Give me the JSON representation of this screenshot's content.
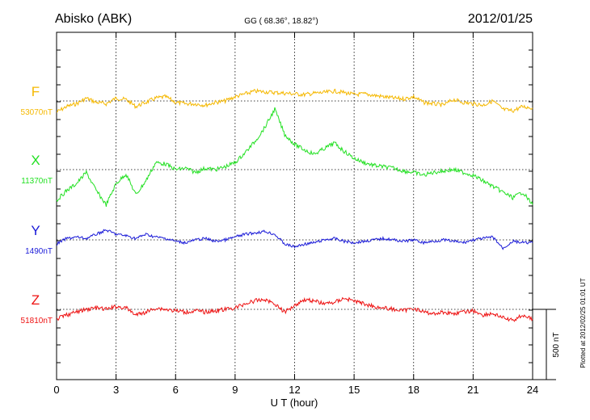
{
  "header": {
    "station": "Abisko (ABK)",
    "coords": "GG ( 68.36°,  18.82°)",
    "date": "2012/01/25"
  },
  "side_note": "Plotted at 2012/02/25 01:01 UT",
  "scale_label": "500 nT",
  "chart_data": {
    "type": "line",
    "xlabel": "U T (hour)",
    "xlim": [
      0,
      24
    ],
    "xticks": [
      0,
      3,
      6,
      9,
      12,
      15,
      18,
      21,
      24
    ],
    "grid": true,
    "scale_nT": 500,
    "series": [
      {
        "name": "F",
        "baseline_label": "53070nT",
        "color": "#f5b800",
        "t": [
          0,
          0.5,
          1,
          1.5,
          2,
          2.5,
          3,
          3.5,
          4,
          4.5,
          5,
          5.5,
          6,
          6.5,
          7,
          7.5,
          8,
          8.5,
          9,
          9.5,
          10,
          10.5,
          11,
          11.5,
          12,
          12.5,
          13,
          13.5,
          14,
          14.5,
          15,
          15.5,
          16,
          16.5,
          17,
          17.5,
          18,
          18.5,
          19,
          19.5,
          20,
          20.5,
          21,
          21.5,
          22,
          22.5,
          23,
          23.5,
          24
        ],
        "v": [
          -80,
          -40,
          -20,
          20,
          -10,
          -20,
          20,
          10,
          -40,
          -10,
          20,
          30,
          -10,
          -20,
          -20,
          -30,
          -10,
          0,
          30,
          50,
          70,
          65,
          60,
          55,
          50,
          45,
          55,
          60,
          70,
          60,
          45,
          50,
          40,
          30,
          20,
          15,
          30,
          -10,
          -20,
          -30,
          10,
          -10,
          -20,
          -30,
          0,
          -60,
          -70,
          -40,
          -50
        ]
      },
      {
        "name": "X",
        "baseline_label": "11370nT",
        "color": "#22e022",
        "t": [
          0,
          0.5,
          1,
          1.5,
          2,
          2.5,
          3,
          3.5,
          4,
          4.5,
          5,
          5.5,
          6,
          6.5,
          7,
          7.5,
          8,
          8.5,
          9,
          9.5,
          10,
          10.5,
          11,
          11.5,
          12,
          12.5,
          13,
          13.5,
          14,
          14.5,
          15,
          15.5,
          16,
          16.5,
          17,
          17.5,
          18,
          18.5,
          19,
          19.5,
          20,
          20.5,
          21,
          21.5,
          22,
          22.5,
          23,
          23.5,
          24
        ],
        "v": [
          -220,
          -150,
          -100,
          -20,
          -150,
          -250,
          -100,
          -30,
          -180,
          -80,
          50,
          40,
          0,
          10,
          -20,
          10,
          0,
          20,
          50,
          120,
          200,
          300,
          430,
          250,
          180,
          140,
          110,
          150,
          190,
          130,
          80,
          50,
          30,
          20,
          10,
          -10,
          -20,
          -40,
          -20,
          -10,
          0,
          -20,
          -40,
          -80,
          -120,
          -160,
          -200,
          -160,
          -250
        ]
      },
      {
        "name": "Y",
        "baseline_label": "1490nT",
        "color": "#1a1ad8",
        "t": [
          0,
          0.5,
          1,
          1.5,
          2,
          2.5,
          3,
          3.5,
          4,
          4.5,
          5,
          5.5,
          6,
          6.5,
          7,
          7.5,
          8,
          8.5,
          9,
          9.5,
          10,
          10.5,
          11,
          11.5,
          12,
          12.5,
          13,
          13.5,
          14,
          14.5,
          15,
          15.5,
          16,
          16.5,
          17,
          17.5,
          18,
          18.5,
          19,
          19.5,
          20,
          20.5,
          21,
          21.5,
          22,
          22.5,
          23,
          23.5,
          24
        ],
        "v": [
          -30,
          10,
          20,
          10,
          40,
          70,
          40,
          30,
          10,
          40,
          20,
          10,
          -10,
          -20,
          0,
          10,
          -10,
          0,
          20,
          40,
          50,
          60,
          40,
          -30,
          -50,
          -30,
          -20,
          0,
          10,
          -10,
          -20,
          -10,
          0,
          10,
          0,
          -10,
          0,
          -20,
          -10,
          0,
          -10,
          -20,
          0,
          10,
          20,
          -60,
          -10,
          -20,
          -20
        ]
      },
      {
        "name": "Z",
        "baseline_label": "51810nT",
        "color": "#ee1111",
        "t": [
          0,
          0.5,
          1,
          1.5,
          2,
          2.5,
          3,
          3.5,
          4,
          4.5,
          5,
          5.5,
          6,
          6.5,
          7,
          7.5,
          8,
          8.5,
          9,
          9.5,
          10,
          10.5,
          11,
          11.5,
          12,
          12.5,
          13,
          13.5,
          14,
          14.5,
          15,
          15.5,
          16,
          16.5,
          17,
          17.5,
          18,
          18.5,
          19,
          19.5,
          20,
          20.5,
          21,
          21.5,
          22,
          22.5,
          23,
          23.5,
          24
        ],
        "v": [
          -70,
          -40,
          -20,
          0,
          10,
          0,
          20,
          10,
          -40,
          -20,
          10,
          0,
          -10,
          -20,
          -10,
          -20,
          -10,
          0,
          10,
          40,
          60,
          70,
          40,
          -20,
          30,
          70,
          60,
          40,
          50,
          80,
          60,
          40,
          20,
          10,
          0,
          -10,
          10,
          -20,
          -30,
          -20,
          -30,
          -20,
          -10,
          -40,
          -30,
          -60,
          -80,
          -40,
          -70
        ]
      }
    ]
  }
}
